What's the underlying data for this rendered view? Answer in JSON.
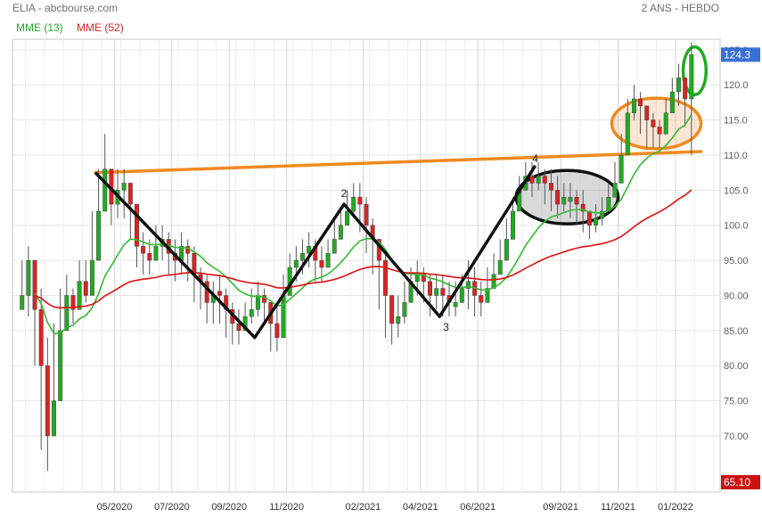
{
  "header": {
    "left": "ELIA - abcbourse.com",
    "right": "2 ANS - HEBDO"
  },
  "legend": [
    {
      "label": "MME (13)",
      "color": "#22aa22"
    },
    {
      "label": "MME (52)",
      "color": "#dd2222"
    }
  ],
  "colors": {
    "up": "#22aa22",
    "down": "#dd2222",
    "mme13": "#33bb33",
    "mme52": "#dd1111",
    "pattern": "#111111",
    "trend": "#f08a1e",
    "badge_high": "#3a6fd8",
    "badge_low": "#cc1111"
  },
  "badges": {
    "high": "124.3",
    "low": "65.10"
  },
  "chart_data": {
    "type": "candlestick",
    "y_ticks": [
      "70.00",
      "75.00",
      "80.00",
      "85.00",
      "90.00",
      "95.00",
      "100.0",
      "105.0",
      "110.0",
      "115.0",
      "120.0",
      "125.0"
    ],
    "ylim": [
      62,
      126.5
    ],
    "x_ticks": [
      {
        "label": "05/2020",
        "week": 16
      },
      {
        "label": "07/2020",
        "week": 25
      },
      {
        "label": "09/2020",
        "week": 34
      },
      {
        "label": "11/2020",
        "week": 43
      },
      {
        "label": "02/2021",
        "week": 55
      },
      {
        "label": "04/2021",
        "week": 64
      },
      {
        "label": "06/2021",
        "week": 73
      },
      {
        "label": "09/2021",
        "week": 86
      },
      {
        "label": "11/2021",
        "week": 95
      },
      {
        "label": "01/2022",
        "week": 104
      }
    ],
    "xlim": [
      0,
      111
    ],
    "close": [
      90,
      95,
      88,
      80,
      70,
      75,
      85,
      90,
      88,
      92,
      90,
      95,
      102,
      108,
      103,
      105,
      106,
      103,
      97,
      96,
      95,
      97,
      98,
      96,
      95,
      97,
      96,
      93,
      92,
      89,
      90,
      90,
      88,
      86,
      85,
      87,
      88,
      90,
      89,
      86,
      84,
      90,
      94,
      95,
      96,
      97,
      95,
      94,
      96,
      98,
      100,
      102,
      104,
      103,
      100,
      98,
      95,
      90,
      86,
      87,
      89,
      92,
      93,
      92,
      90,
      91,
      90,
      89,
      89,
      91,
      92,
      90,
      89,
      91,
      93,
      95,
      98,
      102,
      105,
      107,
      106,
      107,
      106,
      105,
      103,
      104,
      104,
      103,
      102,
      100,
      101,
      102,
      104,
      106,
      110,
      116,
      118,
      117,
      115,
      114,
      113,
      116,
      119,
      121,
      118,
      124.3
    ],
    "low": [
      88,
      87,
      80,
      68,
      65,
      73,
      83,
      86,
      86,
      88,
      89,
      93,
      100,
      104,
      100,
      101,
      101,
      98,
      94,
      93,
      93,
      95,
      95,
      93,
      92,
      93,
      92,
      89,
      88,
      86,
      86,
      86,
      84,
      83,
      83,
      85,
      86,
      87,
      86,
      82,
      82,
      88,
      91,
      92,
      93,
      94,
      92,
      92,
      94,
      96,
      98,
      100,
      101,
      99,
      96,
      93,
      88,
      84,
      83,
      84,
      86,
      89,
      90,
      89,
      87,
      88,
      87,
      87,
      87,
      89,
      88,
      87,
      87,
      89,
      91,
      93,
      96,
      99,
      103,
      105,
      104,
      105,
      103,
      102,
      101,
      102,
      101,
      100,
      99,
      98,
      99,
      100,
      102,
      104,
      108,
      113,
      115,
      113,
      111,
      111,
      111,
      114,
      116,
      117,
      114,
      110
    ],
    "high": [
      95,
      97,
      92,
      91,
      84,
      86,
      91,
      93,
      91,
      95,
      95,
      102,
      108,
      113,
      107,
      108,
      108,
      106,
      102,
      99,
      98,
      100,
      100,
      99,
      98,
      99,
      98,
      97,
      94,
      93,
      92,
      93,
      91,
      89,
      88,
      89,
      91,
      92,
      91,
      89,
      89,
      93,
      96,
      97,
      98,
      99,
      98,
      97,
      98,
      101,
      102,
      105,
      106,
      106,
      104,
      101,
      98,
      96,
      90,
      90,
      92,
      94,
      95,
      94,
      93,
      93,
      93,
      92,
      92,
      93,
      95,
      94,
      92,
      94,
      96,
      98,
      101,
      104,
      107,
      109,
      109,
      109,
      108,
      108,
      107,
      106,
      106,
      105,
      105,
      102,
      103,
      104,
      106,
      109,
      113,
      118,
      120,
      119,
      117,
      116,
      115,
      118,
      121,
      123,
      121,
      126
    ]
  },
  "annotations": {
    "pattern_labels": [
      {
        "text": "2",
        "week": 52,
        "price": 104
      },
      {
        "text": "3",
        "week": 68,
        "price": 85
      },
      {
        "text": "4",
        "week": 82,
        "price": 109
      }
    ],
    "pattern_line": [
      {
        "week": 13,
        "price": 107.5
      },
      {
        "week": 38,
        "price": 84
      },
      {
        "week": 52,
        "price": 103
      },
      {
        "week": 67,
        "price": 87
      },
      {
        "week": 82,
        "price": 108.5
      }
    ],
    "trend_line": [
      {
        "week": 13,
        "price": 107.5
      },
      {
        "week": 108,
        "price": 110.5
      }
    ],
    "ellipses": [
      {
        "name": "consolidation-ellipse",
        "cx_week": 87,
        "cy_price": 104,
        "rx_week": 8,
        "ry_price": 3.8,
        "stroke": "#111111",
        "fill": "rgba(120,120,120,0.28)"
      },
      {
        "name": "breakout-ellipse",
        "cx_week": 101,
        "cy_price": 114.5,
        "rx_week": 7,
        "ry_price": 3.6,
        "stroke": "#f08a1e",
        "fill": "rgba(245,170,110,0.28)"
      },
      {
        "name": "peak-ellipse",
        "cx_week": 107,
        "cy_price": 122,
        "rx_week": 1.8,
        "ry_price": 3.4,
        "stroke": "#22aa22",
        "fill": "none"
      }
    ]
  }
}
